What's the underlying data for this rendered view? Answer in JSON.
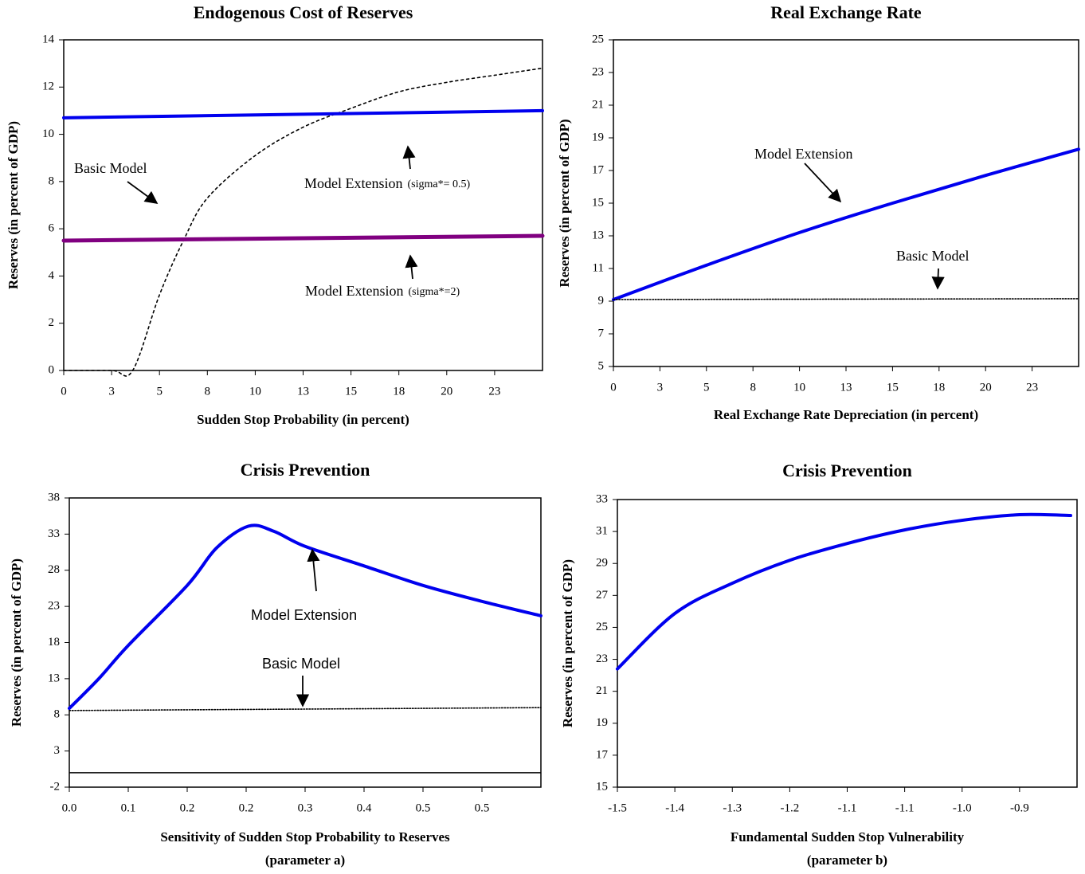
{
  "chart_data": [
    {
      "type": "line",
      "title": "Endogenous Cost of Reserves",
      "x_label": [
        "Sudden Stop Probability (in percent)"
      ],
      "y_label": "Reserves (in percent of GDP)",
      "x": [
        0,
        2.5,
        3.6,
        5,
        6.25,
        7.5,
        10,
        12.5,
        15,
        17.5,
        20,
        22.5,
        25
      ],
      "xlim": [
        0,
        25
      ],
      "xticks": [
        0,
        {
          "value": 2.5,
          "label": "3"
        },
        5,
        {
          "value": 7.5,
          "label": "8"
        },
        10,
        {
          "value": 12.5,
          "label": "13"
        },
        15,
        {
          "value": 17.5,
          "label": "18"
        },
        20,
        {
          "value": 22.5,
          "label": "23"
        }
      ],
      "ylim": [
        0,
        14
      ],
      "yticks": [
        0,
        2,
        4,
        6,
        8,
        10,
        12,
        14
      ],
      "series": [
        {
          "name": "Basic Model",
          "color": "#000000",
          "dash": true,
          "values": [
            0,
            0,
            0,
            3.2,
            5.5,
            7.3,
            9.1,
            10.3,
            11.1,
            11.8,
            12.2,
            12.5,
            12.8
          ]
        },
        {
          "name": "Model Extension",
          "note": "(sigma*= 0.5)",
          "color": "#0000ee",
          "x": [
            0,
            25
          ],
          "values": [
            10.7,
            11.0
          ]
        },
        {
          "name": "Model Extension",
          "note": "(sigma*=2)",
          "color": "#800080",
          "x": [
            0,
            25
          ],
          "values": [
            5.5,
            5.7
          ]
        }
      ]
    },
    {
      "type": "line",
      "title": "Real Exchange Rate",
      "x_label": [
        "Real Exchange Rate Depreciation (in percent)"
      ],
      "y_label": "Reserves (in percent of GDP)",
      "x": [
        0,
        5,
        10,
        15,
        20,
        25
      ],
      "xlim": [
        0,
        25
      ],
      "xticks": [
        0,
        {
          "value": 2.5,
          "label": "3"
        },
        5,
        {
          "value": 7.5,
          "label": "8"
        },
        10,
        {
          "value": 12.5,
          "label": "13"
        },
        15,
        {
          "value": 17.5,
          "label": "18"
        },
        20,
        {
          "value": 22.5,
          "label": "23"
        }
      ],
      "ylim": [
        5,
        25
      ],
      "yticks": [
        5,
        7,
        9,
        11,
        13,
        15,
        17,
        19,
        21,
        23,
        25
      ],
      "series": [
        {
          "name": "Model Extension",
          "color": "#0000ee",
          "values": [
            9.1,
            11.2,
            13.2,
            15.0,
            16.7,
            18.3
          ]
        },
        {
          "name": "Basic Model",
          "color": "#000000",
          "dash": true,
          "x": [
            0,
            25
          ],
          "values": [
            9.1,
            9.15
          ]
        }
      ]
    },
    {
      "type": "line",
      "title": "Crisis Prevention",
      "x_label": [
        "Sensitivity of Sudden Stop Probability to Reserves",
        "(parameter a)"
      ],
      "y_label": "Reserves (in percent of GDP)",
      "x": [
        0,
        0.0375,
        0.075,
        0.15,
        0.1875,
        0.228,
        0.26,
        0.3,
        0.375,
        0.45,
        0.525,
        0.6
      ],
      "xlim": [
        0,
        0.6
      ],
      "xticks": [
        {
          "value": 0,
          "label": "0.0"
        },
        {
          "value": 0.075,
          "label": "0.1"
        },
        {
          "value": 0.15,
          "label": "0.2"
        },
        {
          "value": 0.225,
          "label": "0.2"
        },
        0.3,
        {
          "value": 0.375,
          "label": "0.4"
        },
        {
          "value": 0.45,
          "label": "0.5"
        },
        {
          "value": 0.525,
          "label": "0.5"
        }
      ],
      "ylim": [
        -2,
        38
      ],
      "yticks": [
        -2,
        3,
        8,
        13,
        18,
        23,
        28,
        33,
        38
      ],
      "series": [
        {
          "name": "Model Extension",
          "color": "#0000ee",
          "values": [
            8.9,
            13.0,
            17.6,
            25.9,
            31.1,
            34.1,
            33.4,
            31.3,
            28.6,
            25.9,
            23.7,
            21.7
          ]
        },
        {
          "name": "Basic Model",
          "color": "#000000",
          "dash": true,
          "x": [
            0,
            0.6
          ],
          "values": [
            8.6,
            9.0
          ]
        }
      ]
    },
    {
      "type": "line",
      "title": "Crisis Prevention",
      "x_label": [
        "Fundamental Sudden Stop Vulnerability",
        "(parameter b)"
      ],
      "y_label": "Reserves (in percent of GDP)",
      "x": [
        -1.5,
        -1.41,
        -1.32,
        -1.23,
        -1.14,
        -1.05,
        -0.96,
        -0.87,
        -0.79
      ],
      "xlim": [
        -1.5,
        -0.78
      ],
      "xticks": [
        -1.5,
        {
          "value": -1.41,
          "label": "-1.4"
        },
        {
          "value": -1.32,
          "label": "-1.3"
        },
        {
          "value": -1.23,
          "label": "-1.2"
        },
        {
          "value": -1.14,
          "label": "-1.1"
        },
        {
          "value": -1.05,
          "label": "-1.1"
        },
        {
          "value": -0.96,
          "label": "-1.0"
        },
        {
          "value": -0.87,
          "label": "-0.9"
        }
      ],
      "ylim": [
        15,
        33
      ],
      "yticks": [
        15,
        17,
        19,
        21,
        23,
        25,
        27,
        29,
        31,
        33
      ],
      "series": [
        {
          "color": "#0000ee",
          "values": [
            22.4,
            25.87,
            27.76,
            29.2,
            30.25,
            31.1,
            31.7,
            32.05,
            32.0
          ]
        }
      ]
    }
  ]
}
